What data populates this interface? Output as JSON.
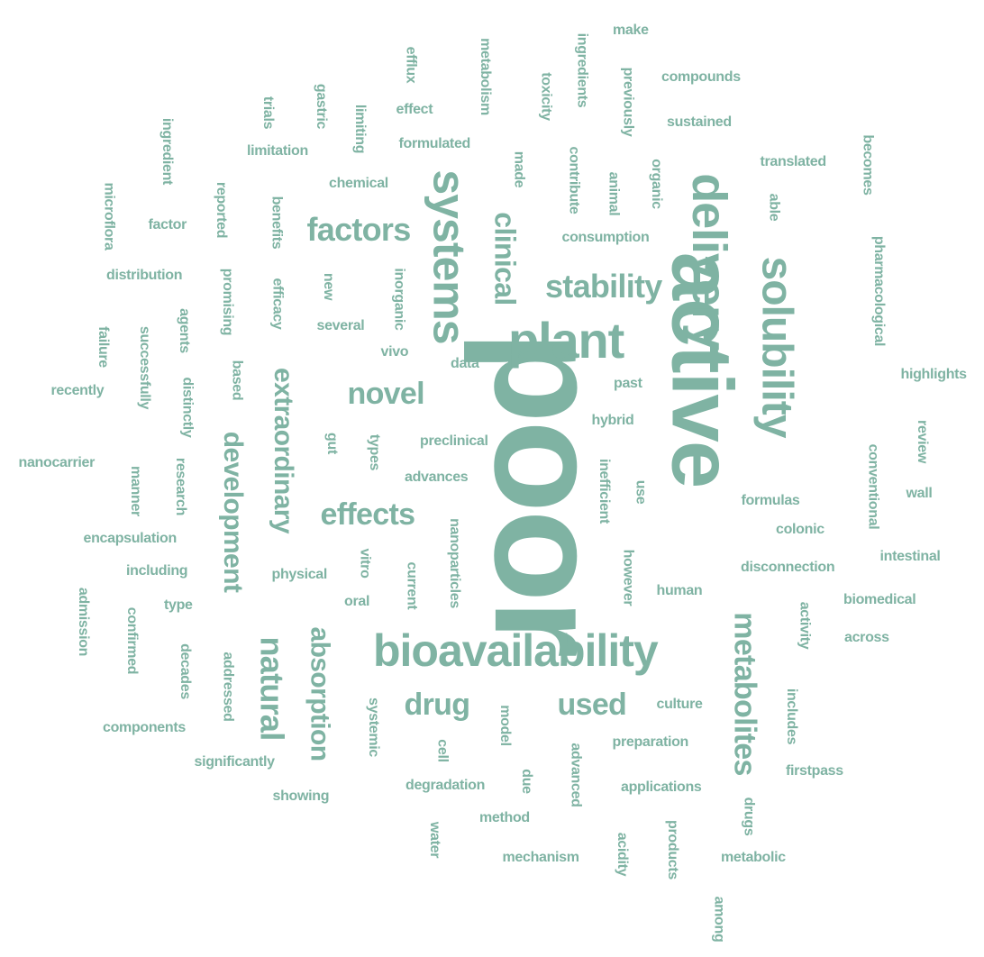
{
  "color": "#7fb3a3",
  "words": [
    {
      "text": "poor",
      "weight": 1.0
    },
    {
      "text": "active",
      "weight": 0.78
    },
    {
      "text": "bioavailability",
      "weight": 0.56
    },
    {
      "text": "delivery",
      "weight": 0.52
    },
    {
      "text": "systems",
      "weight": 0.48
    },
    {
      "text": "solubility",
      "weight": 0.46
    },
    {
      "text": "plant",
      "weight": 0.46
    },
    {
      "text": "metabolites",
      "weight": 0.36
    },
    {
      "text": "development",
      "weight": 0.32
    },
    {
      "text": "extraordinary",
      "weight": 0.32
    },
    {
      "text": "absorption",
      "weight": 0.32
    },
    {
      "text": "natural",
      "weight": 0.36
    },
    {
      "text": "factors",
      "weight": 0.34
    },
    {
      "text": "stability",
      "weight": 0.34
    },
    {
      "text": "novel",
      "weight": 0.32
    },
    {
      "text": "effects",
      "weight": 0.32
    },
    {
      "text": "drug",
      "weight": 0.32
    },
    {
      "text": "used",
      "weight": 0.32
    },
    {
      "text": "clinical",
      "weight": 0.3
    },
    {
      "text": "make",
      "weight": 0.14
    },
    {
      "text": "ingredients",
      "weight": 0.14
    },
    {
      "text": "metabolism",
      "weight": 0.14
    },
    {
      "text": "efflux",
      "weight": 0.14
    },
    {
      "text": "compounds",
      "weight": 0.14
    },
    {
      "text": "toxicity",
      "weight": 0.14
    },
    {
      "text": "previously",
      "weight": 0.14
    },
    {
      "text": "effect",
      "weight": 0.14
    },
    {
      "text": "sustained",
      "weight": 0.14
    },
    {
      "text": "trials",
      "weight": 0.14
    },
    {
      "text": "gastric",
      "weight": 0.14
    },
    {
      "text": "limiting",
      "weight": 0.14
    },
    {
      "text": "formulated",
      "weight": 0.14
    },
    {
      "text": "becomes",
      "weight": 0.14
    },
    {
      "text": "ingredient",
      "weight": 0.14
    },
    {
      "text": "limitation",
      "weight": 0.14
    },
    {
      "text": "made",
      "weight": 0.14
    },
    {
      "text": "contribute",
      "weight": 0.14
    },
    {
      "text": "organic",
      "weight": 0.14
    },
    {
      "text": "translated",
      "weight": 0.14
    },
    {
      "text": "chemical",
      "weight": 0.14
    },
    {
      "text": "animal",
      "weight": 0.14
    },
    {
      "text": "microflora",
      "weight": 0.14
    },
    {
      "text": "reported",
      "weight": 0.14
    },
    {
      "text": "benefits",
      "weight": 0.14
    },
    {
      "text": "able",
      "weight": 0.14
    },
    {
      "text": "factor",
      "weight": 0.14
    },
    {
      "text": "consumption",
      "weight": 0.14
    },
    {
      "text": "pharmacological",
      "weight": 0.14
    },
    {
      "text": "distribution",
      "weight": 0.14
    },
    {
      "text": "promising",
      "weight": 0.14
    },
    {
      "text": "efficacy",
      "weight": 0.14
    },
    {
      "text": "new",
      "weight": 0.14
    },
    {
      "text": "inorganic",
      "weight": 0.14
    },
    {
      "text": "agents",
      "weight": 0.14
    },
    {
      "text": "several",
      "weight": 0.14
    },
    {
      "text": "failure",
      "weight": 0.14
    },
    {
      "text": "successfully",
      "weight": 0.14
    },
    {
      "text": "vivo",
      "weight": 0.14
    },
    {
      "text": "data",
      "weight": 0.14
    },
    {
      "text": "highlights",
      "weight": 0.14
    },
    {
      "text": "based",
      "weight": 0.14
    },
    {
      "text": "recently",
      "weight": 0.14
    },
    {
      "text": "distinctly",
      "weight": 0.14
    },
    {
      "text": "past",
      "weight": 0.14
    },
    {
      "text": "hybrid",
      "weight": 0.14
    },
    {
      "text": "review",
      "weight": 0.14
    },
    {
      "text": "gut",
      "weight": 0.14
    },
    {
      "text": "types",
      "weight": 0.14
    },
    {
      "text": "preclinical",
      "weight": 0.14
    },
    {
      "text": "conventional",
      "weight": 0.14
    },
    {
      "text": "nanocarrier",
      "weight": 0.14
    },
    {
      "text": "manner",
      "weight": 0.14
    },
    {
      "text": "research",
      "weight": 0.14
    },
    {
      "text": "inefficient",
      "weight": 0.14
    },
    {
      "text": "use",
      "weight": 0.14
    },
    {
      "text": "advances",
      "weight": 0.14
    },
    {
      "text": "wall",
      "weight": 0.14
    },
    {
      "text": "formulas",
      "weight": 0.14
    },
    {
      "text": "nanoparticles",
      "weight": 0.14
    },
    {
      "text": "colonic",
      "weight": 0.14
    },
    {
      "text": "encapsulation",
      "weight": 0.14
    },
    {
      "text": "intestinal",
      "weight": 0.14
    },
    {
      "text": "vitro",
      "weight": 0.14
    },
    {
      "text": "however",
      "weight": 0.14
    },
    {
      "text": "disconnection",
      "weight": 0.14
    },
    {
      "text": "including",
      "weight": 0.14
    },
    {
      "text": "physical",
      "weight": 0.14
    },
    {
      "text": "current",
      "weight": 0.14
    },
    {
      "text": "human",
      "weight": 0.14
    },
    {
      "text": "admission",
      "weight": 0.14
    },
    {
      "text": "biomedical",
      "weight": 0.14
    },
    {
      "text": "type",
      "weight": 0.14
    },
    {
      "text": "oral",
      "weight": 0.14
    },
    {
      "text": "activity",
      "weight": 0.14
    },
    {
      "text": "confirmed",
      "weight": 0.14
    },
    {
      "text": "across",
      "weight": 0.14
    },
    {
      "text": "decades",
      "weight": 0.14
    },
    {
      "text": "addressed",
      "weight": 0.14
    },
    {
      "text": "systemic",
      "weight": 0.14
    },
    {
      "text": "culture",
      "weight": 0.14
    },
    {
      "text": "includes",
      "weight": 0.14
    },
    {
      "text": "model",
      "weight": 0.14
    },
    {
      "text": "components",
      "weight": 0.14
    },
    {
      "text": "cell",
      "weight": 0.14
    },
    {
      "text": "preparation",
      "weight": 0.14
    },
    {
      "text": "advanced",
      "weight": 0.14
    },
    {
      "text": "significantly",
      "weight": 0.14
    },
    {
      "text": "firstpass",
      "weight": 0.14
    },
    {
      "text": "degradation",
      "weight": 0.14
    },
    {
      "text": "due",
      "weight": 0.14
    },
    {
      "text": "applications",
      "weight": 0.14
    },
    {
      "text": "showing",
      "weight": 0.14
    },
    {
      "text": "drugs",
      "weight": 0.14
    },
    {
      "text": "method",
      "weight": 0.14
    },
    {
      "text": "water",
      "weight": 0.14
    },
    {
      "text": "acidity",
      "weight": 0.14
    },
    {
      "text": "products",
      "weight": 0.14
    },
    {
      "text": "mechanism",
      "weight": 0.14
    },
    {
      "text": "metabolic",
      "weight": 0.14
    },
    {
      "text": "among",
      "weight": 0.14
    }
  ]
}
